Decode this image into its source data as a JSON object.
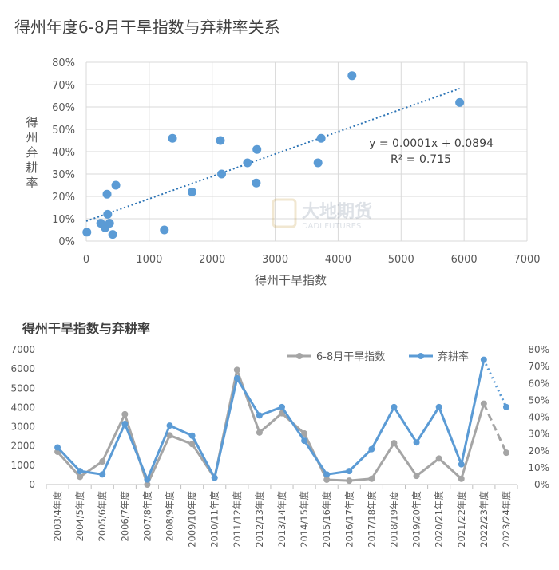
{
  "chart_data": [
    {
      "type": "scatter",
      "title": "得州年度6-8月干旱指数与弃耕率关系",
      "xlabel": "得州干旱指数",
      "ylabel": "得州弃耕率",
      "xlim": [
        0,
        7000
      ],
      "ylim": [
        0,
        0.8
      ],
      "xticks": [
        "0",
        "1000",
        "2000",
        "3000",
        "4000",
        "5000",
        "6000",
        "7000"
      ],
      "yticks": [
        "0%",
        "10%",
        "20%",
        "30%",
        "40%",
        "50%",
        "60%",
        "70%",
        "80%"
      ],
      "grid": true,
      "points": [
        {
          "x": 10,
          "y": 0.04
        },
        {
          "x": 230,
          "y": 0.08
        },
        {
          "x": 300,
          "y": 0.06
        },
        {
          "x": 330,
          "y": 0.21
        },
        {
          "x": 340,
          "y": 0.12
        },
        {
          "x": 370,
          "y": 0.08
        },
        {
          "x": 420,
          "y": 0.03
        },
        {
          "x": 470,
          "y": 0.25
        },
        {
          "x": 1240,
          "y": 0.05
        },
        {
          "x": 1370,
          "y": 0.46
        },
        {
          "x": 1680,
          "y": 0.22
        },
        {
          "x": 2130,
          "y": 0.45
        },
        {
          "x": 2150,
          "y": 0.3
        },
        {
          "x": 2560,
          "y": 0.35
        },
        {
          "x": 2700,
          "y": 0.26
        },
        {
          "x": 2710,
          "y": 0.41
        },
        {
          "x": 3680,
          "y": 0.35
        },
        {
          "x": 3730,
          "y": 0.46
        },
        {
          "x": 4220,
          "y": 0.74
        },
        {
          "x": 5930,
          "y": 0.62
        }
      ],
      "trendline": {
        "slope": 0.0001,
        "intercept": 0.0894,
        "x_range": [
          0,
          5930
        ],
        "style": "dotted"
      },
      "equation_text": "y = 0.0001x + 0.0894",
      "r2_text": "R² = 0.715",
      "colors": {
        "points": "#5b9bd5",
        "trend": "#2e75b6"
      }
    },
    {
      "type": "line",
      "title": "得州干旱指数与弃耕率",
      "categories": [
        "2003/4年度",
        "2004/5年度",
        "2005/6年度",
        "2006/7年度",
        "2007/8年度",
        "2008/9年度",
        "2009/10年度",
        "2010/11年度",
        "2011/12年度",
        "2012/13年度",
        "2013/14年度",
        "2014/15年度",
        "2015/16年度",
        "2016/17年度",
        "2017/18年度",
        "2018/19年度",
        "2019/20年度",
        "2020/21年度",
        "2021/22年度",
        "2022/23年度",
        "2023/24年度"
      ],
      "left_axis": {
        "ylim": [
          0,
          7000
        ],
        "ticks": [
          "0",
          "1000",
          "2000",
          "3000",
          "4000",
          "5000",
          "6000",
          "7000"
        ]
      },
      "right_axis": {
        "ylim": [
          0,
          0.8
        ],
        "ticks": [
          "0%",
          "10%",
          "20%",
          "30%",
          "40%",
          "50%",
          "60%",
          "70%",
          "80%"
        ]
      },
      "legend_position": "top-right",
      "series": [
        {
          "name": "6-8月干旱指数",
          "axis": "left",
          "color": "#a5a5a5",
          "values": [
            1700,
            400,
            1200,
            3650,
            0,
            2550,
            2100,
            350,
            5950,
            2700,
            3700,
            2650,
            250,
            200,
            300,
            2150,
            450,
            1350,
            300,
            4200,
            1650
          ],
          "projected_from_index": 19
        },
        {
          "name": "弃耕率",
          "axis": "right",
          "color": "#5b9bd5",
          "values": [
            0.22,
            0.08,
            0.06,
            0.36,
            0.03,
            0.35,
            0.29,
            0.04,
            0.63,
            0.41,
            0.46,
            0.26,
            0.06,
            0.08,
            0.21,
            0.46,
            0.25,
            0.46,
            0.12,
            0.74,
            0.46
          ],
          "projected_from_index": 19
        }
      ]
    }
  ],
  "watermark": {
    "cn": "大地期货",
    "en": "DADI FUTURES"
  }
}
